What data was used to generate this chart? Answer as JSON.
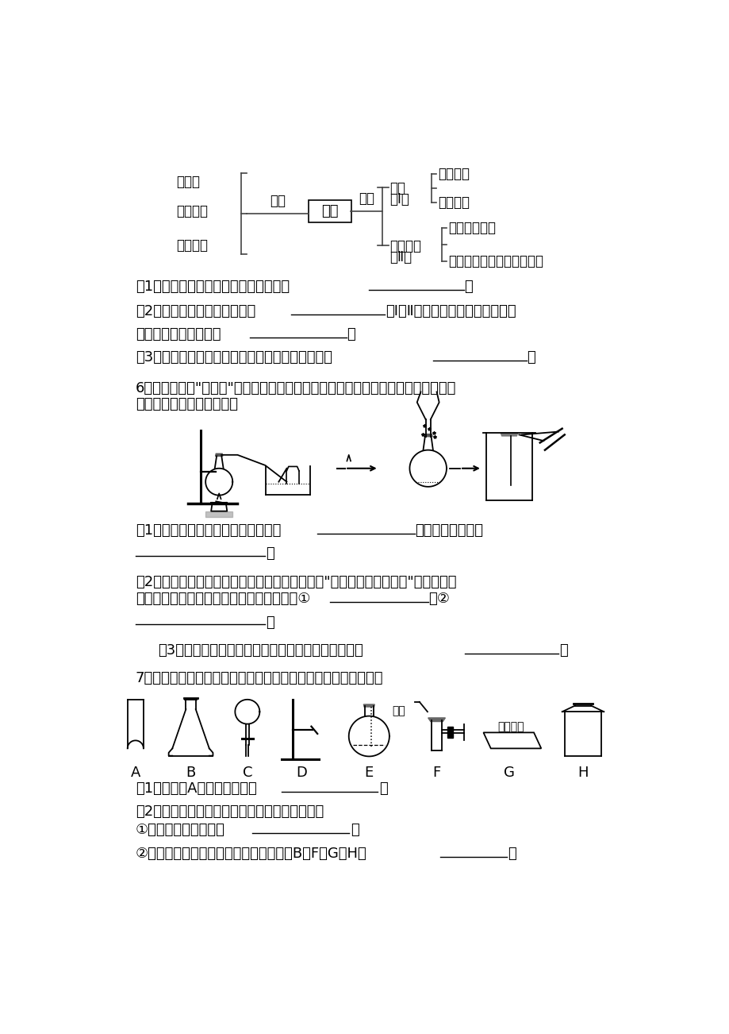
{
  "bg_color": "#ffffff",
  "font_color": "#000000",
  "mind_map_left_items": [
    "氯酸钾",
    "高锰酸钾",
    "过氧化氢"
  ],
  "mind_map_center": "氧气",
  "mind_map_left_label": "制法",
  "mind_map_right_label": "性质",
  "mind_map_branch1_label1": "燃烧",
  "mind_map_branch1_label2": "（Ⅰ）",
  "mind_map_branch1_items": [
    "硫、铁等",
    "天然气等"
  ],
  "mind_map_branch2_label1": "缓慢氧化",
  "mind_map_branch2_label2": "（Ⅱ）",
  "mind_map_branch2_items": [
    "钢铁、食物等",
    "呼吸作用、酒和醋的酿造等"
  ],
  "instruments_labels": [
    "A",
    "B",
    "C",
    "D",
    "E",
    "F",
    "G",
    "H"
  ]
}
